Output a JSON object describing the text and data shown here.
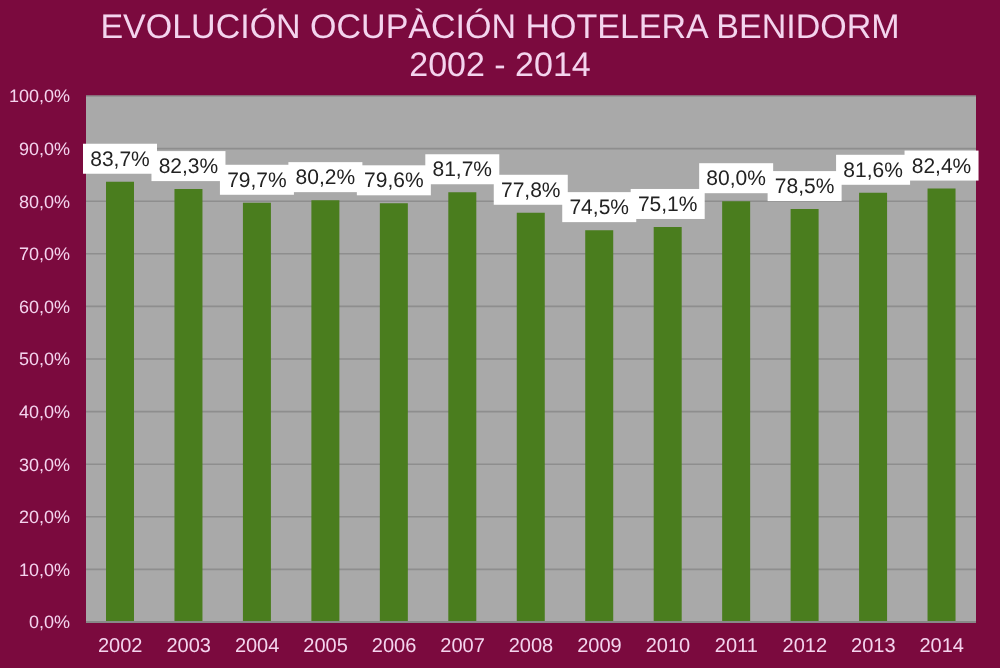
{
  "chart_data": {
    "type": "bar",
    "title": "EVOLUCIÓN OCUPÀCIÓN HOTELERA BENIDORM",
    "subtitle": "2002 - 2014",
    "categories": [
      "2002",
      "2003",
      "2004",
      "2005",
      "2006",
      "2007",
      "2008",
      "2009",
      "2010",
      "2011",
      "2012",
      "2013",
      "2014"
    ],
    "values": [
      83.7,
      82.3,
      79.7,
      80.2,
      79.6,
      81.7,
      77.8,
      74.5,
      75.1,
      80.0,
      78.5,
      81.6,
      82.4
    ],
    "value_labels": [
      "83,7%",
      "82,3%",
      "79,7%",
      "80,2%",
      "79,6%",
      "81,7%",
      "77,8%",
      "74,5%",
      "75,1%",
      "80,0%",
      "78,5%",
      "81,6%",
      "82,4%"
    ],
    "color": "#4a7d1e",
    "ylim": [
      0,
      100
    ],
    "yticks": [
      {
        "value": 0,
        "label": "0,0%"
      },
      {
        "value": 10,
        "label": "10,0%"
      },
      {
        "value": 20,
        "label": "20,0%"
      },
      {
        "value": 30,
        "label": "30,0%"
      },
      {
        "value": 40,
        "label": "40,0%"
      },
      {
        "value": 50,
        "label": "50,0%"
      },
      {
        "value": 60,
        "label": "60,0%"
      },
      {
        "value": 70,
        "label": "70,0%"
      },
      {
        "value": 80,
        "label": "80,0%"
      },
      {
        "value": 90,
        "label": "90,0%"
      },
      {
        "value": 100,
        "label": "100,0%"
      }
    ],
    "grid": "y",
    "legend": false
  }
}
